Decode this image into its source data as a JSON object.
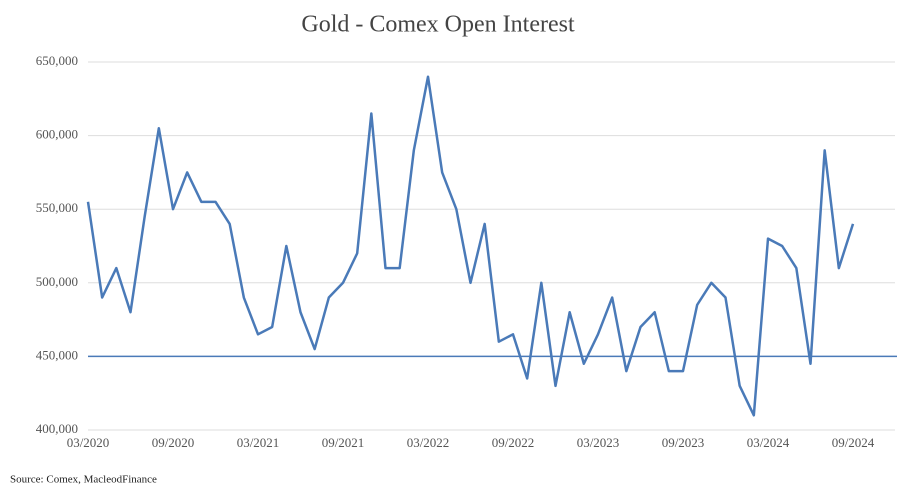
{
  "chart_data": {
    "type": "line",
    "title": "Gold - Comex Open Interest",
    "source": "Source: Comex,  MacleodFinance",
    "x": [
      "03/2020",
      "04/2020",
      "05/2020",
      "06/2020",
      "07/2020",
      "08/2020",
      "09/2020",
      "10/2020",
      "11/2020",
      "12/2020",
      "01/2021",
      "02/2021",
      "03/2021",
      "04/2021",
      "05/2021",
      "06/2021",
      "07/2021",
      "08/2021",
      "09/2021",
      "10/2021",
      "11/2021",
      "12/2021",
      "01/2022",
      "02/2022",
      "03/2022",
      "04/2022",
      "05/2022",
      "06/2022",
      "07/2022",
      "08/2022",
      "09/2022",
      "10/2022",
      "11/2022",
      "12/2022",
      "01/2023",
      "02/2023",
      "03/2023",
      "04/2023",
      "05/2023",
      "06/2023",
      "07/2023",
      "08/2023",
      "09/2023",
      "10/2023",
      "11/2023",
      "12/2023",
      "01/2024",
      "02/2024",
      "03/2024",
      "04/2024",
      "05/2024",
      "06/2024",
      "07/2024",
      "08/2024",
      "09/2024"
    ],
    "series": [
      {
        "name": "Open Interest",
        "color": "#4a7ab8",
        "values": [
          555,
          490,
          510,
          480,
          545,
          605,
          550,
          575,
          555,
          555,
          540,
          490,
          465,
          470,
          525,
          480,
          455,
          490,
          500,
          520,
          615,
          510,
          510,
          590,
          640,
          575,
          550,
          500,
          540,
          460,
          465,
          435,
          500,
          430,
          480,
          445,
          465,
          490,
          440,
          470,
          480,
          440,
          440,
          485,
          500,
          490,
          430,
          410,
          530,
          525,
          510,
          445,
          590,
          510,
          540
        ]
      }
    ],
    "xticks": [
      "03/2020",
      "09/2020",
      "03/2021",
      "09/2021",
      "03/2022",
      "09/2022",
      "03/2023",
      "09/2023",
      "03/2024",
      "09/2024"
    ],
    "ylim": [
      400000,
      650000
    ],
    "yticks": [
      {
        "value": 400000,
        "label": "400,000"
      },
      {
        "value": 450000,
        "label": "450,000"
      },
      {
        "value": 500000,
        "label": "500,000"
      },
      {
        "value": 550000,
        "label": "550,000"
      },
      {
        "value": 600000,
        "label": "600,000"
      },
      {
        "value": 650000,
        "label": "650,000"
      }
    ],
    "value_scale": 1000,
    "hline": 450000,
    "grid": true
  }
}
